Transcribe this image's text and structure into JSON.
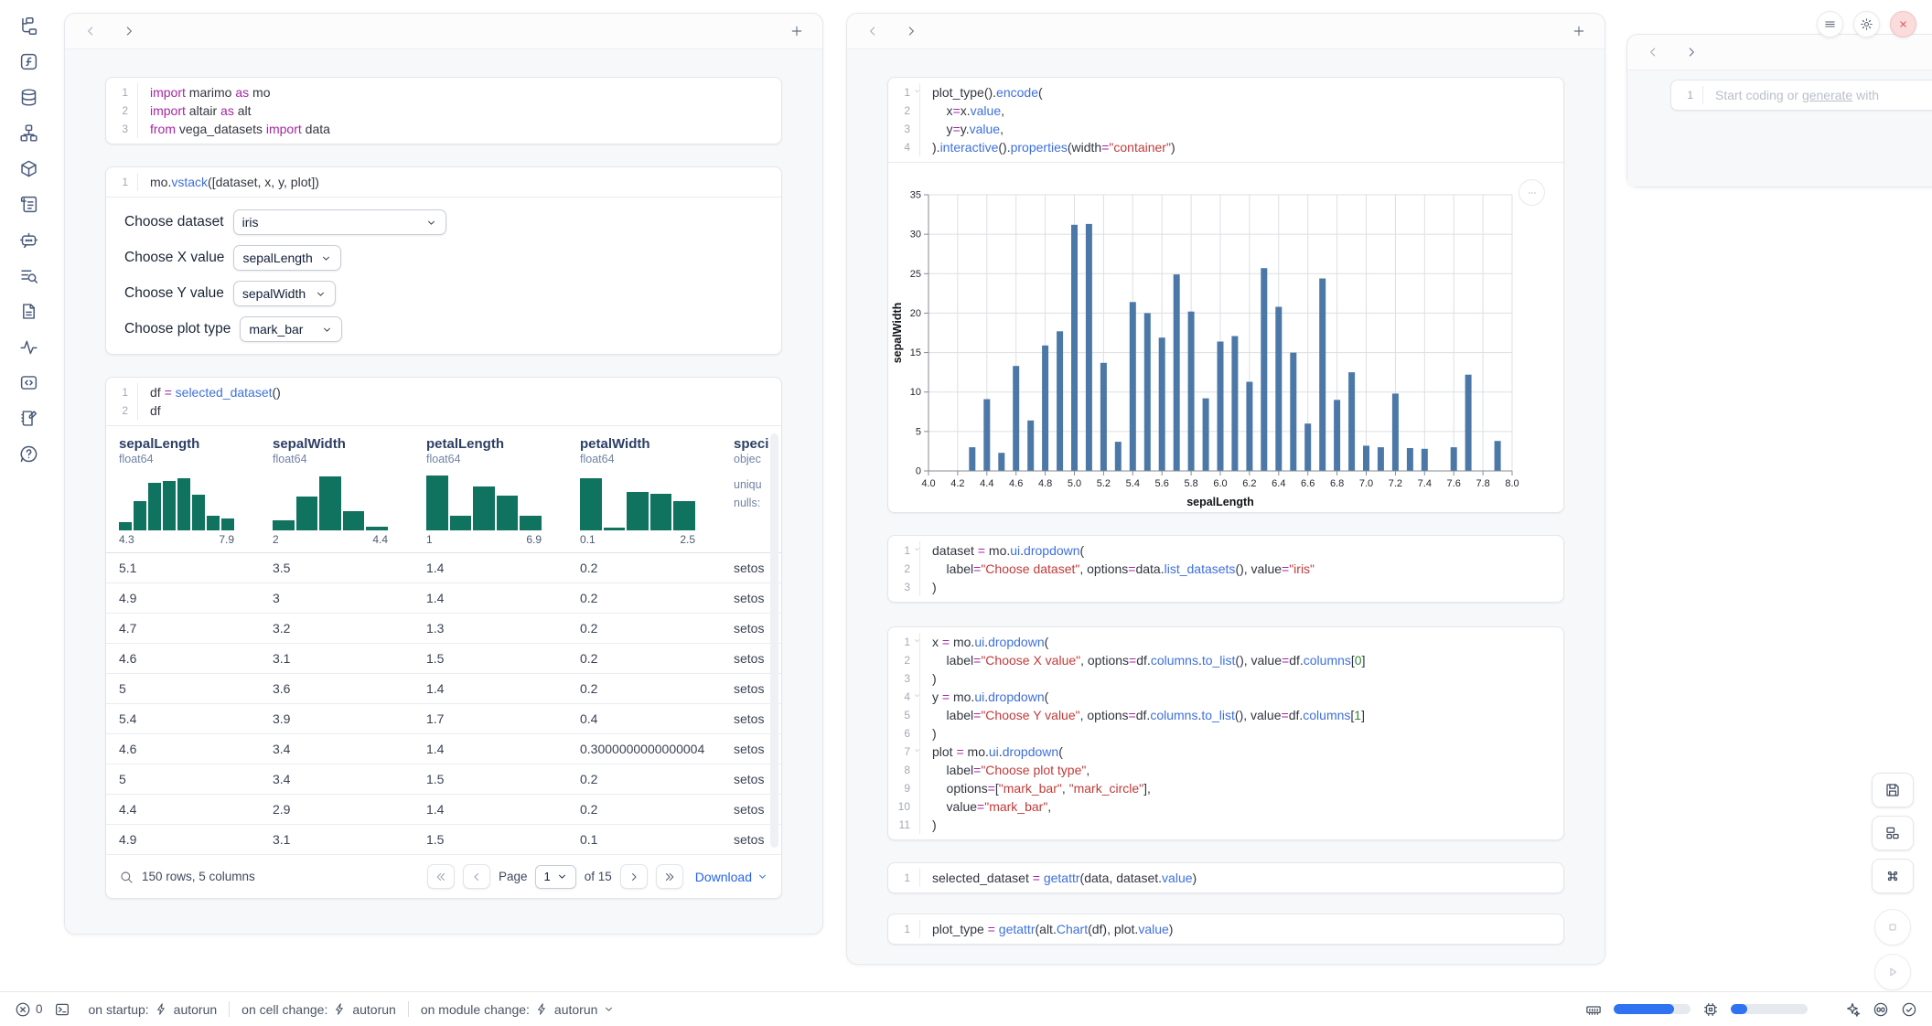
{
  "colors": {
    "accent_blue": "#2563eb",
    "hist_teal": "#0f7360",
    "bar_blue": "#4c78a8",
    "close_red": "#d64545",
    "code_keyword": "#a626a4",
    "code_function": "#3e70dd",
    "code_string": "#c13a3a",
    "code_number": "#358835"
  },
  "sidebar": {
    "icons": [
      "file-tree",
      "function",
      "database",
      "dependency-graph",
      "package",
      "logs",
      "chatbot",
      "scratchpad",
      "documentation",
      "tracing",
      "snippets",
      "notebook",
      "help"
    ]
  },
  "cells": {
    "imports": {
      "folds": [],
      "lines": [
        [
          [
            "k",
            "import"
          ],
          [
            "d",
            " marimo "
          ],
          [
            "k",
            "as"
          ],
          [
            "d",
            " mo"
          ]
        ],
        [
          [
            "k",
            "import"
          ],
          [
            "d",
            " altair "
          ],
          [
            "k",
            "as"
          ],
          [
            "d",
            " alt"
          ]
        ],
        [
          [
            "k",
            "from"
          ],
          [
            "d",
            " vega_datasets "
          ],
          [
            "k",
            "import"
          ],
          [
            "d",
            " data"
          ]
        ]
      ]
    },
    "vstack": {
      "folds": [],
      "lines": [
        [
          [
            "d",
            "mo."
          ],
          [
            "f",
            "vstack"
          ],
          [
            "d",
            "([dataset, x, y, plot])"
          ]
        ]
      ]
    },
    "df": {
      "folds": [],
      "lines": [
        [
          [
            "d",
            "df "
          ],
          [
            "o",
            "="
          ],
          [
            "d",
            " "
          ],
          [
            "f",
            "selected_dataset"
          ],
          [
            "d",
            "()"
          ]
        ],
        [
          [
            "d",
            "df"
          ]
        ]
      ]
    },
    "plot_code": {
      "folds": [
        1
      ],
      "lines": [
        [
          [
            "d",
            "plot_type()."
          ],
          [
            "f",
            "encode"
          ],
          [
            "d",
            "("
          ]
        ],
        [
          [
            "d",
            "    x"
          ],
          [
            "o",
            "="
          ],
          [
            "d",
            "x."
          ],
          [
            "f",
            "value"
          ],
          [
            "d",
            ","
          ]
        ],
        [
          [
            "d",
            "    y"
          ],
          [
            "o",
            "="
          ],
          [
            "d",
            "y."
          ],
          [
            "f",
            "value"
          ],
          [
            "d",
            ","
          ]
        ],
        [
          [
            "d",
            ")."
          ],
          [
            "f",
            "interactive"
          ],
          [
            "d",
            "()."
          ],
          [
            "f",
            "properties"
          ],
          [
            "d",
            "(width"
          ],
          [
            "o",
            "="
          ],
          [
            "s",
            "\"container\""
          ],
          [
            "d",
            ")"
          ]
        ]
      ]
    },
    "dataset_dropdown": {
      "folds": [
        1
      ],
      "lines": [
        [
          [
            "d",
            "dataset "
          ],
          [
            "o",
            "="
          ],
          [
            "d",
            " mo."
          ],
          [
            "f",
            "ui"
          ],
          [
            "d",
            "."
          ],
          [
            "f",
            "dropdown"
          ],
          [
            "d",
            "("
          ]
        ],
        [
          [
            "d",
            "    label"
          ],
          [
            "o",
            "="
          ],
          [
            "s",
            "\"Choose dataset\""
          ],
          [
            "d",
            ", options"
          ],
          [
            "o",
            "="
          ],
          [
            "d",
            "data."
          ],
          [
            "f",
            "list_datasets"
          ],
          [
            "d",
            "(), value"
          ],
          [
            "o",
            "="
          ],
          [
            "s",
            "\"iris\""
          ]
        ],
        [
          [
            "d",
            ")"
          ]
        ]
      ]
    },
    "xyplot": {
      "folds": [
        1,
        4,
        7
      ],
      "lines": [
        [
          [
            "d",
            "x "
          ],
          [
            "o",
            "="
          ],
          [
            "d",
            " mo."
          ],
          [
            "f",
            "ui"
          ],
          [
            "d",
            "."
          ],
          [
            "f",
            "dropdown"
          ],
          [
            "d",
            "("
          ]
        ],
        [
          [
            "d",
            "    label"
          ],
          [
            "o",
            "="
          ],
          [
            "s",
            "\"Choose X value\""
          ],
          [
            "d",
            ", options"
          ],
          [
            "o",
            "="
          ],
          [
            "d",
            "df."
          ],
          [
            "f",
            "columns"
          ],
          [
            "d",
            "."
          ],
          [
            "f",
            "to_list"
          ],
          [
            "d",
            "(), value"
          ],
          [
            "o",
            "="
          ],
          [
            "d",
            "df."
          ],
          [
            "f",
            "columns"
          ],
          [
            "d",
            "["
          ],
          [
            "n",
            "0"
          ],
          [
            "d",
            "]"
          ]
        ],
        [
          [
            "d",
            ")"
          ]
        ],
        [
          [
            "d",
            "y "
          ],
          [
            "o",
            "="
          ],
          [
            "d",
            " mo."
          ],
          [
            "f",
            "ui"
          ],
          [
            "d",
            "."
          ],
          [
            "f",
            "dropdown"
          ],
          [
            "d",
            "("
          ]
        ],
        [
          [
            "d",
            "    label"
          ],
          [
            "o",
            "="
          ],
          [
            "s",
            "\"Choose Y value\""
          ],
          [
            "d",
            ", options"
          ],
          [
            "o",
            "="
          ],
          [
            "d",
            "df."
          ],
          [
            "f",
            "columns"
          ],
          [
            "d",
            "."
          ],
          [
            "f",
            "to_list"
          ],
          [
            "d",
            "(), value"
          ],
          [
            "o",
            "="
          ],
          [
            "d",
            "df."
          ],
          [
            "f",
            "columns"
          ],
          [
            "d",
            "["
          ],
          [
            "n",
            "1"
          ],
          [
            "d",
            "]"
          ]
        ],
        [
          [
            "d",
            ")"
          ]
        ],
        [
          [
            "d",
            "plot "
          ],
          [
            "o",
            "="
          ],
          [
            "d",
            " mo."
          ],
          [
            "f",
            "ui"
          ],
          [
            "d",
            "."
          ],
          [
            "f",
            "dropdown"
          ],
          [
            "d",
            "("
          ]
        ],
        [
          [
            "d",
            "    label"
          ],
          [
            "o",
            "="
          ],
          [
            "s",
            "\"Choose plot type\""
          ],
          [
            "d",
            ","
          ]
        ],
        [
          [
            "d",
            "    options"
          ],
          [
            "o",
            "="
          ],
          [
            "d",
            "["
          ],
          [
            "s",
            "\"mark_bar\""
          ],
          [
            "d",
            ", "
          ],
          [
            "s",
            "\"mark_circle\""
          ],
          [
            "d",
            "],"
          ]
        ],
        [
          [
            "d",
            "    value"
          ],
          [
            "o",
            "="
          ],
          [
            "s",
            "\"mark_bar\""
          ],
          [
            "d",
            ","
          ]
        ],
        [
          [
            "d",
            ")"
          ]
        ]
      ]
    },
    "selected_dataset": {
      "folds": [],
      "lines": [
        [
          [
            "d",
            "selected_dataset "
          ],
          [
            "o",
            "="
          ],
          [
            "d",
            " "
          ],
          [
            "f",
            "getattr"
          ],
          [
            "d",
            "(data, dataset."
          ],
          [
            "f",
            "value"
          ],
          [
            "d",
            ")"
          ]
        ]
      ]
    },
    "plot_type_cell": {
      "folds": [],
      "lines": [
        [
          [
            "d",
            "plot_type "
          ],
          [
            "o",
            "="
          ],
          [
            "d",
            " "
          ],
          [
            "f",
            "getattr"
          ],
          [
            "d",
            "(alt."
          ],
          [
            "f",
            "Chart"
          ],
          [
            "d",
            "(df), plot."
          ],
          [
            "f",
            "value"
          ],
          [
            "d",
            ")"
          ]
        ]
      ]
    }
  },
  "controls": {
    "rows": [
      {
        "name": "dataset",
        "label": "Choose dataset",
        "value": "iris",
        "wide": true
      },
      {
        "name": "x-value",
        "label": "Choose X value",
        "value": "sepalLength",
        "wide": false
      },
      {
        "name": "y-value",
        "label": "Choose Y value",
        "value": "sepalWidth",
        "wide": false
      },
      {
        "name": "plot-type",
        "label": "Choose plot type",
        "value": "mark_bar",
        "wide": false
      }
    ]
  },
  "table": {
    "columns": [
      {
        "name": "sepalLength",
        "type": "float64",
        "min": "4.3",
        "max": "7.9",
        "hist": [
          0.14,
          0.52,
          0.84,
          0.87,
          0.92,
          0.63,
          0.25,
          0.21
        ]
      },
      {
        "name": "sepalWidth",
        "type": "float64",
        "min": "2",
        "max": "4.4",
        "hist": [
          0.18,
          0.6,
          0.95,
          0.34,
          0.06
        ]
      },
      {
        "name": "petalLength",
        "type": "float64",
        "min": "1",
        "max": "6.9",
        "hist": [
          0.97,
          0.25,
          0.77,
          0.62,
          0.25
        ]
      },
      {
        "name": "petalWidth",
        "type": "float64",
        "min": "0.1",
        "max": "2.5",
        "hist": [
          0.92,
          0.05,
          0.67,
          0.65,
          0.52
        ]
      },
      {
        "name": "speci",
        "type": "objec",
        "stats": [
          "uniqu",
          "nulls:"
        ]
      }
    ],
    "rows": [
      [
        "5.1",
        "3.5",
        "1.4",
        "0.2",
        "setos"
      ],
      [
        "4.9",
        "3",
        "1.4",
        "0.2",
        "setos"
      ],
      [
        "4.7",
        "3.2",
        "1.3",
        "0.2",
        "setos"
      ],
      [
        "4.6",
        "3.1",
        "1.5",
        "0.2",
        "setos"
      ],
      [
        "5",
        "3.6",
        "1.4",
        "0.2",
        "setos"
      ],
      [
        "5.4",
        "3.9",
        "1.7",
        "0.4",
        "setos"
      ],
      [
        "4.6",
        "3.4",
        "1.4",
        "0.3000000000000004",
        "setos"
      ],
      [
        "5",
        "3.4",
        "1.5",
        "0.2",
        "setos"
      ],
      [
        "4.4",
        "2.9",
        "1.4",
        "0.2",
        "setos"
      ],
      [
        "4.9",
        "3.1",
        "1.5",
        "0.1",
        "setos"
      ]
    ],
    "footer": {
      "summary": "150 rows, 5 columns",
      "page_label": "Page",
      "page_value": "1",
      "page_total": "of 15",
      "download_label": "Download"
    }
  },
  "chart_data": {
    "type": "bar",
    "x": [
      4.3,
      4.4,
      4.5,
      4.6,
      4.7,
      4.8,
      4.9,
      5.0,
      5.1,
      5.2,
      5.3,
      5.4,
      5.5,
      5.6,
      5.7,
      5.8,
      5.9,
      6.0,
      6.1,
      6.2,
      6.3,
      6.4,
      6.5,
      6.6,
      6.7,
      6.8,
      6.9,
      7.0,
      7.1,
      7.2,
      7.3,
      7.4,
      7.6,
      7.7,
      7.9
    ],
    "values": [
      3.0,
      9.1,
      2.3,
      13.3,
      6.4,
      15.9,
      17.7,
      31.2,
      31.3,
      13.7,
      3.7,
      21.4,
      20.0,
      16.9,
      24.9,
      20.2,
      9.2,
      16.4,
      17.1,
      11.3,
      25.7,
      20.8,
      15.0,
      6.0,
      24.4,
      9.0,
      12.5,
      3.2,
      3.0,
      9.8,
      2.9,
      2.8,
      3.0,
      12.2,
      3.8
    ],
    "xlabel": "sepalLength",
    "ylabel": "sepalWidth",
    "xlim": [
      4.0,
      8.0
    ],
    "ylim": [
      0,
      35
    ],
    "x_ticks": [
      4.0,
      4.2,
      4.4,
      4.6,
      4.8,
      5.0,
      5.2,
      5.4,
      5.6,
      5.8,
      6.0,
      6.2,
      6.4,
      6.6,
      6.8,
      7.0,
      7.2,
      7.4,
      7.6,
      7.8,
      8.0
    ],
    "y_ticks": [
      0,
      5,
      10,
      15,
      20,
      25,
      30,
      35
    ],
    "grid": true,
    "legend": false,
    "bar_color": "#4c78a8"
  },
  "ai_panel": {
    "line_number": "1",
    "placeholder_prefix": "Start coding or ",
    "placeholder_link": "generate",
    "placeholder_suffix": " with"
  },
  "window_controls": {
    "icons": [
      "menu",
      "settings",
      "close"
    ]
  },
  "floating_buttons": {
    "square": [
      "save",
      "layout",
      "command"
    ],
    "round": [
      "stop",
      "play"
    ]
  },
  "status_bar": {
    "error_count": "0",
    "items": [
      {
        "label": "on startup:",
        "value": "autorun",
        "chevron": false
      },
      {
        "label": "on cell change:",
        "value": "autorun",
        "chevron": false
      },
      {
        "label": "on module change:",
        "value": "autorun",
        "chevron": true
      }
    ],
    "resources": {
      "ram_pct": 78,
      "cpu_pct": 22
    },
    "right_icons": [
      "sparkles",
      "copilot",
      "check-circle"
    ]
  }
}
